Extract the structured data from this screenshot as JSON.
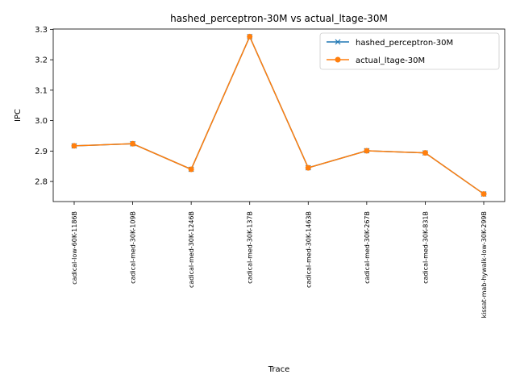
{
  "chart_data": {
    "type": "line",
    "title": "hashed_perceptron-30M vs actual_ltage-30M",
    "xlabel": "Trace",
    "ylabel": "IPC",
    "categories": [
      "cadical-low-60K-1186B",
      "cadical-med-30K-109B",
      "cadical-med-30K-1246B",
      "cadical-med-30K-137B",
      "cadical-med-30K-1463B",
      "cadical-med-30K-267B",
      "cadical-med-30K-831B",
      "kissat-mab-hywalk-low-30K-299B"
    ],
    "series": [
      {
        "name": "hashed_perceptron-30M",
        "color": "#1f77b4",
        "marker": "x",
        "values": [
          2.917,
          2.924,
          2.84,
          3.276,
          2.845,
          2.901,
          2.894,
          2.759
        ]
      },
      {
        "name": "actual_ltage-30M",
        "color": "#ff7f0e",
        "marker": "circle",
        "values": [
          2.917,
          2.924,
          2.84,
          3.276,
          2.845,
          2.901,
          2.894,
          2.759
        ]
      }
    ],
    "ylim": [
      2.734,
      3.301
    ],
    "yticks": [
      "2.8",
      "2.9",
      "3.0",
      "3.1",
      "3.2",
      "3.3"
    ],
    "grid": false,
    "legend_position": "top-right"
  }
}
